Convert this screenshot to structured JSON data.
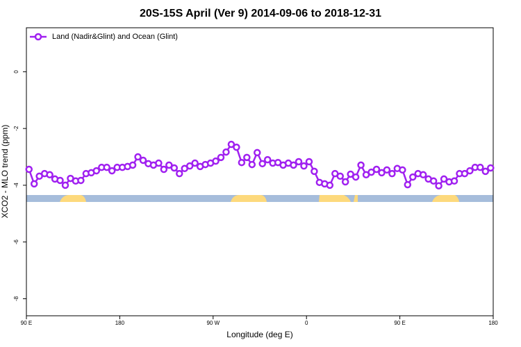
{
  "chart_data": {
    "type": "line",
    "title": "20S-15S April (Ver 9)   2014-09-06 to 2018-12-31",
    "x_label": "Longitude (deg E)",
    "y_label": "XCO2 - MLO trend (ppm)",
    "xlim": [
      90,
      540
    ],
    "ylim": [
      -8.6,
      1.55
    ],
    "xticks": [
      {
        "value": 90,
        "label": "90 E"
      },
      180,
      {
        "value": 270,
        "label": "90 W"
      },
      {
        "value": 360,
        "label": "0"
      },
      {
        "value": 450,
        "label": "90 E"
      },
      {
        "value": 540,
        "label": "180"
      }
    ],
    "yticks": [
      0,
      -2,
      -4,
      -6,
      -8
    ],
    "legend": "top-left",
    "x": [
      92.5,
      97.5,
      102.5,
      107.5,
      112.5,
      117.5,
      122.5,
      127.5,
      132.5,
      137.5,
      142.5,
      147.5,
      152.5,
      157.5,
      162.5,
      167.5,
      172.5,
      177.5,
      182.5,
      187.5,
      192.5,
      197.5,
      202.5,
      207.5,
      212.5,
      217.5,
      222.5,
      227.5,
      232.5,
      237.5,
      242.5,
      247.5,
      252.5,
      257.5,
      262.5,
      267.5,
      272.5,
      277.5,
      282.5,
      287.5,
      292.5,
      297.5,
      302.5,
      307.5,
      312.5,
      317.5,
      322.5,
      327.5,
      332.5,
      337.5,
      342.5,
      347.5,
      352.5,
      357.5,
      362.5,
      367.5,
      372.5,
      377.5,
      382.5,
      387.5,
      392.5,
      397.5,
      402.5,
      407.5,
      412.5,
      417.5,
      422.5,
      427.5,
      432.5,
      437.5,
      442.5,
      447.5,
      452.5,
      457.5,
      462.5,
      467.5,
      472.5,
      477.5,
      482.5,
      487.5,
      492.5,
      497.5,
      502.5,
      507.5,
      512.5,
      517.5,
      522.5,
      527.5,
      532.5,
      537.5
    ],
    "series": [
      {
        "name": "Land (Nadir&Glint) and Ocean (Glint)",
        "color": "#a020f0",
        "values": [
          -3.44,
          -3.95,
          -3.68,
          -3.59,
          -3.63,
          -3.78,
          -3.83,
          -4.0,
          -3.76,
          -3.85,
          -3.83,
          -3.59,
          -3.56,
          -3.49,
          -3.37,
          -3.37,
          -3.49,
          -3.37,
          -3.37,
          -3.34,
          -3.29,
          -3.0,
          -3.12,
          -3.24,
          -3.29,
          -3.22,
          -3.44,
          -3.29,
          -3.39,
          -3.59,
          -3.41,
          -3.32,
          -3.22,
          -3.34,
          -3.27,
          -3.22,
          -3.15,
          -3.02,
          -2.83,
          -2.56,
          -2.66,
          -3.2,
          -3.02,
          -3.27,
          -2.85,
          -3.24,
          -3.1,
          -3.22,
          -3.2,
          -3.29,
          -3.22,
          -3.29,
          -3.17,
          -3.32,
          -3.17,
          -3.51,
          -3.9,
          -3.95,
          -4.0,
          -3.59,
          -3.68,
          -3.88,
          -3.61,
          -3.71,
          -3.29,
          -3.63,
          -3.54,
          -3.44,
          -3.56,
          -3.46,
          -3.59,
          -3.41,
          -3.46,
          -3.98,
          -3.71,
          -3.59,
          -3.63,
          -3.78,
          -3.85,
          -4.02,
          -3.78,
          -3.88,
          -3.85,
          -3.59,
          -3.59,
          -3.49,
          -3.37,
          -3.37,
          -3.51,
          -3.39
        ]
      }
    ]
  }
}
